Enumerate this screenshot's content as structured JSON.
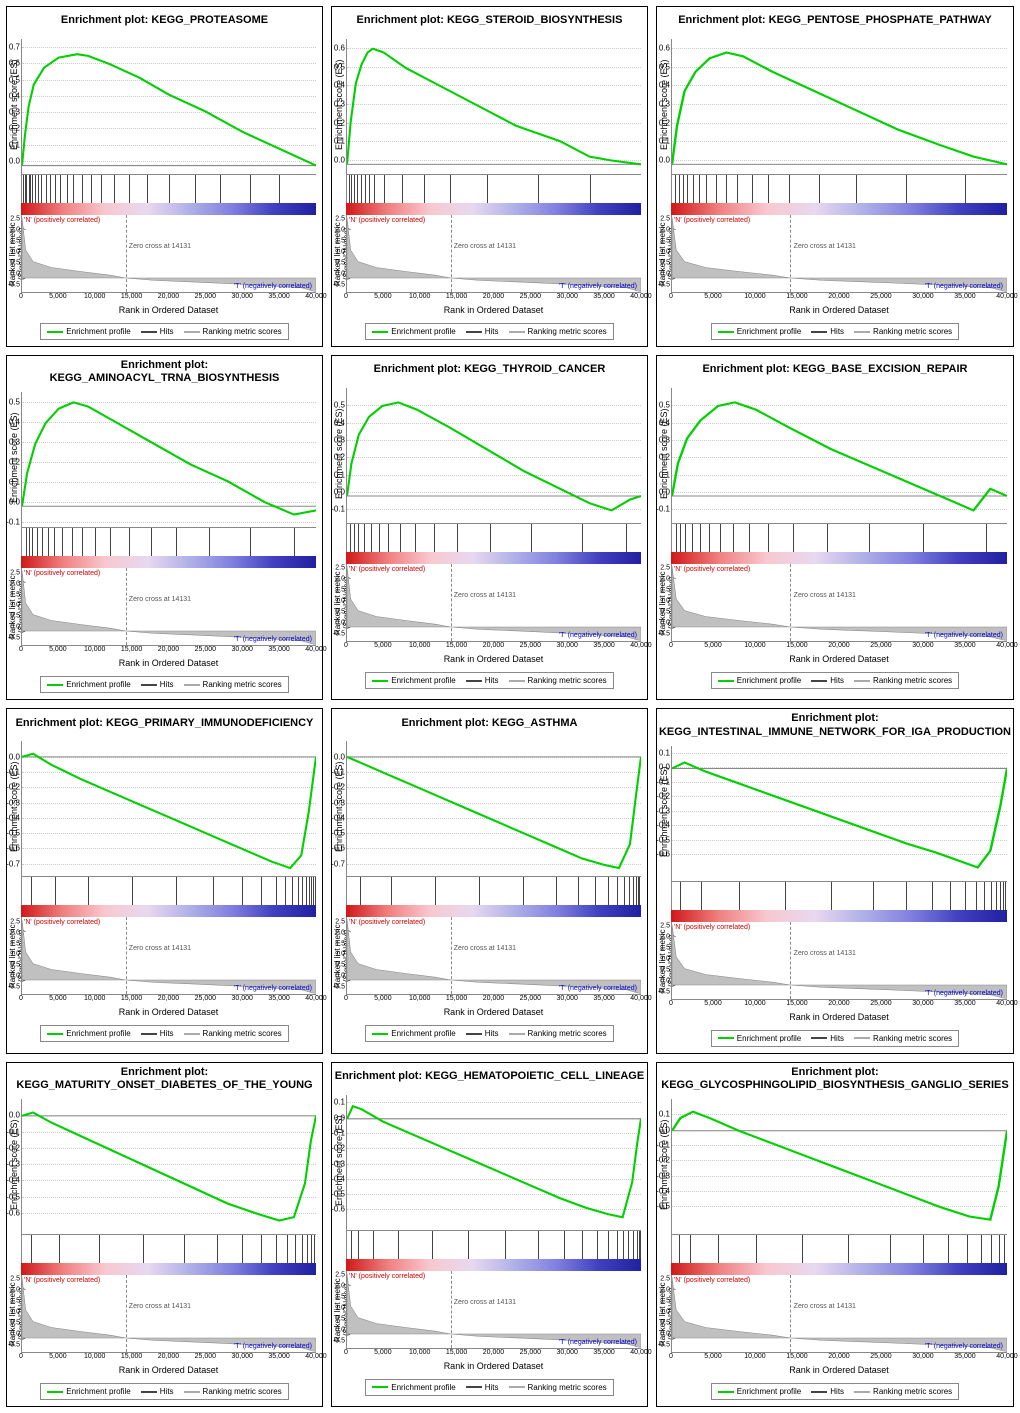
{
  "global": {
    "x_max": 40000,
    "x_ticks": [
      0,
      5000,
      10000,
      15000,
      20000,
      25000,
      30000,
      35000,
      40000
    ],
    "x_tick_labels": [
      "0",
      "5,000",
      "10,000",
      "15,000",
      "20,000",
      "25,000",
      "30,000",
      "35,000",
      "40,000"
    ],
    "x_label": "Rank in Ordered Dataset",
    "es_ylabel": "Enrichment score (ES)",
    "metric_ylabel": "Ranked list metric (Signal2Noise)",
    "zero_cross_label": "Zero cross at 14131",
    "zero_cross_x": 14131,
    "pos_corr_label": "'N' (positively correlated)",
    "neg_corr_label": "'T' (negatively correlated)",
    "legend_enrichment": "Enrichment profile",
    "legend_hits": "Hits",
    "legend_metric": "Ranking metric scores",
    "line_color": "#00d000",
    "hit_color": "#444444",
    "metric_fill": "#c0c0c0",
    "gradient_colors": [
      "#d01818",
      "#f08080",
      "#f8c8d0",
      "#e8d8f0",
      "#b0b0e8",
      "#8080e0",
      "#4040c0",
      "#2020a0"
    ],
    "metric_yticks": [
      -0.5,
      0.0,
      0.5,
      1.0,
      1.5,
      2.0,
      2.5
    ],
    "metric_ymin": -0.6,
    "metric_ymax": 2.7,
    "metric_curve": [
      [
        0,
        2.6
      ],
      [
        500,
        1.2
      ],
      [
        1500,
        0.7
      ],
      [
        4000,
        0.45
      ],
      [
        8000,
        0.28
      ],
      [
        12000,
        0.12
      ],
      [
        14131,
        0.0
      ],
      [
        18000,
        -0.1
      ],
      [
        24000,
        -0.18
      ],
      [
        32000,
        -0.3
      ],
      [
        38000,
        -0.42
      ],
      [
        39500,
        -0.55
      ],
      [
        40000,
        -0.58
      ]
    ]
  },
  "panels": [
    {
      "title": "Enrichment plot: KEGG_PROTEASOME",
      "es_ymin": -0.05,
      "es_ymax": 0.75,
      "es_yticks": [
        0.0,
        0.1,
        0.2,
        0.3,
        0.4,
        0.5,
        0.6,
        0.7
      ],
      "es_curve": [
        [
          0,
          0.0
        ],
        [
          400,
          0.18
        ],
        [
          900,
          0.35
        ],
        [
          1600,
          0.48
        ],
        [
          3000,
          0.58
        ],
        [
          5000,
          0.64
        ],
        [
          7500,
          0.66
        ],
        [
          9000,
          0.65
        ],
        [
          12000,
          0.6
        ],
        [
          16000,
          0.52
        ],
        [
          20000,
          0.42
        ],
        [
          25000,
          0.32
        ],
        [
          30000,
          0.2
        ],
        [
          35000,
          0.1
        ],
        [
          40000,
          0.0
        ]
      ],
      "hits": [
        200,
        400,
        600,
        900,
        1100,
        1400,
        1800,
        2200,
        2600,
        3200,
        3800,
        4500,
        5200,
        6100,
        7000,
        8200,
        9400,
        10800,
        12500,
        14500,
        17000,
        20000,
        23500,
        27000,
        31000,
        35000
      ]
    },
    {
      "title": "Enrichment plot: KEGG_STEROID_BIOSYNTHESIS",
      "es_ymin": -0.05,
      "es_ymax": 0.65,
      "es_yticks": [
        0.0,
        0.1,
        0.2,
        0.3,
        0.4,
        0.5,
        0.6
      ],
      "es_curve": [
        [
          0,
          0.0
        ],
        [
          500,
          0.22
        ],
        [
          1200,
          0.42
        ],
        [
          2000,
          0.52
        ],
        [
          2800,
          0.58
        ],
        [
          3500,
          0.6
        ],
        [
          5000,
          0.58
        ],
        [
          8000,
          0.5
        ],
        [
          12000,
          0.42
        ],
        [
          17000,
          0.32
        ],
        [
          23000,
          0.2
        ],
        [
          29000,
          0.12
        ],
        [
          33000,
          0.04
        ],
        [
          36000,
          0.02
        ],
        [
          40000,
          0.0
        ]
      ],
      "hits": [
        300,
        600,
        1000,
        1400,
        1900,
        2400,
        3000,
        3700,
        5000,
        7500,
        10500,
        14000,
        19000,
        26000,
        33000
      ]
    },
    {
      "title": "Enrichment plot: KEGG_PENTOSE_PHOSPHATE_PATHWAY",
      "es_ymin": -0.05,
      "es_ymax": 0.65,
      "es_yticks": [
        0.0,
        0.1,
        0.2,
        0.3,
        0.4,
        0.5,
        0.6
      ],
      "es_curve": [
        [
          0,
          0.0
        ],
        [
          600,
          0.2
        ],
        [
          1500,
          0.38
        ],
        [
          2800,
          0.48
        ],
        [
          4500,
          0.55
        ],
        [
          6500,
          0.58
        ],
        [
          8500,
          0.56
        ],
        [
          12000,
          0.48
        ],
        [
          17000,
          0.38
        ],
        [
          22000,
          0.28
        ],
        [
          27000,
          0.18
        ],
        [
          32000,
          0.1
        ],
        [
          36000,
          0.04
        ],
        [
          40000,
          0.0
        ]
      ],
      "hits": [
        400,
        800,
        1300,
        1800,
        2500,
        3200,
        4100,
        5200,
        6400,
        7800,
        9500,
        11500,
        14000,
        17500,
        22000,
        28000,
        35000
      ]
    },
    {
      "title": "Enrichment plot: KEGG_AMINOACYL_TRNA_BIOSYNTHESIS",
      "es_ymin": -0.1,
      "es_ymax": 0.55,
      "es_yticks": [
        -0.1,
        0.0,
        0.1,
        0.2,
        0.3,
        0.4,
        0.5
      ],
      "es_curve": [
        [
          0,
          0.0
        ],
        [
          700,
          0.16
        ],
        [
          1800,
          0.3
        ],
        [
          3200,
          0.4
        ],
        [
          5000,
          0.47
        ],
        [
          7000,
          0.5
        ],
        [
          9000,
          0.48
        ],
        [
          13000,
          0.4
        ],
        [
          18000,
          0.3
        ],
        [
          23000,
          0.2
        ],
        [
          28000,
          0.12
        ],
        [
          33000,
          0.02
        ],
        [
          37000,
          -0.04
        ],
        [
          40000,
          -0.02
        ]
      ],
      "hits": [
        500,
        900,
        1400,
        2000,
        2700,
        3500,
        4400,
        5500,
        6800,
        8200,
        9900,
        12000,
        14500,
        17500,
        21000,
        25500,
        31000,
        37000
      ]
    },
    {
      "title": "Enrichment plot: KEGG_THYROID_CANCER",
      "es_ymin": -0.15,
      "es_ymax": 0.6,
      "es_yticks": [
        -0.1,
        0.0,
        0.1,
        0.2,
        0.3,
        0.4,
        0.5
      ],
      "es_curve": [
        [
          0,
          0.0
        ],
        [
          600,
          0.18
        ],
        [
          1600,
          0.34
        ],
        [
          3000,
          0.44
        ],
        [
          4800,
          0.5
        ],
        [
          7000,
          0.52
        ],
        [
          9500,
          0.48
        ],
        [
          14000,
          0.38
        ],
        [
          19000,
          0.26
        ],
        [
          24000,
          0.14
        ],
        [
          29000,
          0.04
        ],
        [
          33000,
          -0.04
        ],
        [
          36000,
          -0.08
        ],
        [
          38500,
          -0.02
        ],
        [
          40000,
          0.0
        ]
      ],
      "hits": [
        400,
        900,
        1500,
        2300,
        3200,
        4300,
        5600,
        7200,
        9200,
        11800,
        15000,
        19500,
        25000,
        32000,
        38000
      ]
    },
    {
      "title": "Enrichment plot: KEGG_BASE_EXCISION_REPAIR",
      "es_ymin": -0.15,
      "es_ymax": 0.6,
      "es_yticks": [
        -0.1,
        0.0,
        0.1,
        0.2,
        0.3,
        0.4,
        0.5
      ],
      "es_curve": [
        [
          0,
          0.0
        ],
        [
          700,
          0.18
        ],
        [
          1800,
          0.32
        ],
        [
          3400,
          0.42
        ],
        [
          5500,
          0.5
        ],
        [
          7500,
          0.52
        ],
        [
          10000,
          0.48
        ],
        [
          14000,
          0.38
        ],
        [
          19000,
          0.26
        ],
        [
          24000,
          0.16
        ],
        [
          29000,
          0.06
        ],
        [
          33000,
          -0.02
        ],
        [
          36000,
          -0.08
        ],
        [
          38000,
          0.04
        ],
        [
          40000,
          0.0
        ]
      ],
      "hits": [
        500,
        1000,
        1600,
        2400,
        3300,
        4400,
        5700,
        7300,
        9200,
        11500,
        14500,
        18500,
        23500,
        30000,
        37500
      ]
    },
    {
      "title": "Enrichment plot: KEGG_PRIMARY_IMMUNODEFICIENCY",
      "es_ymin": -0.75,
      "es_ymax": 0.1,
      "es_yticks": [
        -0.7,
        -0.6,
        -0.5,
        -0.4,
        -0.3,
        -0.2,
        -0.1,
        0.0
      ],
      "es_curve": [
        [
          0,
          0.0
        ],
        [
          1500,
          0.02
        ],
        [
          4000,
          -0.05
        ],
        [
          8000,
          -0.14
        ],
        [
          12000,
          -0.22
        ],
        [
          16000,
          -0.3
        ],
        [
          20000,
          -0.38
        ],
        [
          24000,
          -0.46
        ],
        [
          28000,
          -0.54
        ],
        [
          31000,
          -0.6
        ],
        [
          34000,
          -0.66
        ],
        [
          36500,
          -0.7
        ],
        [
          38000,
          -0.62
        ],
        [
          39000,
          -0.35
        ],
        [
          40000,
          0.0
        ]
      ],
      "hits": [
        1200,
        4500,
        9000,
        15000,
        21000,
        26000,
        30000,
        32500,
        34500,
        35800,
        36800,
        37500,
        38100,
        38600,
        39000,
        39300,
        39600,
        39800
      ]
    },
    {
      "title": "Enrichment plot: KEGG_ASTHMA",
      "es_ymin": -0.75,
      "es_ymax": 0.1,
      "es_yticks": [
        -0.7,
        -0.6,
        -0.5,
        -0.4,
        -0.3,
        -0.2,
        -0.1,
        0.0
      ],
      "es_curve": [
        [
          0,
          0.0
        ],
        [
          2000,
          -0.04
        ],
        [
          5000,
          -0.1
        ],
        [
          9000,
          -0.18
        ],
        [
          13000,
          -0.26
        ],
        [
          17000,
          -0.34
        ],
        [
          21000,
          -0.42
        ],
        [
          25000,
          -0.5
        ],
        [
          29000,
          -0.58
        ],
        [
          32000,
          -0.64
        ],
        [
          35000,
          -0.68
        ],
        [
          37000,
          -0.7
        ],
        [
          38500,
          -0.55
        ],
        [
          39300,
          -0.25
        ],
        [
          40000,
          0.0
        ]
      ],
      "hits": [
        1800,
        6000,
        12000,
        18000,
        24000,
        28500,
        31500,
        33800,
        35500,
        36800,
        37700,
        38400,
        38900,
        39300,
        39600,
        39800
      ]
    },
    {
      "title": "Enrichment plot: KEGG_INTESTINAL_IMMUNE_NETWORK_FOR_IGA_PRODUCTION",
      "es_ymin": -0.75,
      "es_ymax": 0.15,
      "es_yticks": [
        -0.6,
        -0.5,
        -0.4,
        -0.3,
        -0.2,
        -0.1,
        0.0,
        0.1
      ],
      "es_curve": [
        [
          0,
          0.0
        ],
        [
          1500,
          0.04
        ],
        [
          4000,
          -0.02
        ],
        [
          8000,
          -0.1
        ],
        [
          12000,
          -0.18
        ],
        [
          16000,
          -0.26
        ],
        [
          20000,
          -0.34
        ],
        [
          24000,
          -0.42
        ],
        [
          28000,
          -0.5
        ],
        [
          31500,
          -0.56
        ],
        [
          34500,
          -0.62
        ],
        [
          36500,
          -0.66
        ],
        [
          38000,
          -0.55
        ],
        [
          39200,
          -0.25
        ],
        [
          40000,
          0.0
        ]
      ],
      "hits": [
        1000,
        3500,
        8000,
        13500,
        19000,
        24000,
        28000,
        31000,
        33200,
        35000,
        36300,
        37300,
        38100,
        38700,
        39200,
        39500,
        39800
      ]
    },
    {
      "title": "Enrichment plot: KEGG_MATURITY_ONSET_DIABETES_OF_THE_YOUNG",
      "es_ymin": -0.7,
      "es_ymax": 0.1,
      "es_yticks": [
        -0.6,
        -0.5,
        -0.4,
        -0.3,
        -0.2,
        -0.1,
        0.0
      ],
      "es_curve": [
        [
          0,
          0.0
        ],
        [
          1500,
          0.02
        ],
        [
          4000,
          -0.04
        ],
        [
          8000,
          -0.12
        ],
        [
          12000,
          -0.2
        ],
        [
          16000,
          -0.28
        ],
        [
          20000,
          -0.36
        ],
        [
          24000,
          -0.44
        ],
        [
          28000,
          -0.52
        ],
        [
          32000,
          -0.58
        ],
        [
          35000,
          -0.62
        ],
        [
          37000,
          -0.6
        ],
        [
          38500,
          -0.4
        ],
        [
          39300,
          -0.15
        ],
        [
          40000,
          0.0
        ]
      ],
      "hits": [
        1200,
        5000,
        10500,
        16500,
        22000,
        26500,
        30000,
        32500,
        34500,
        36000,
        37200,
        38100,
        38800,
        39300,
        39700
      ]
    },
    {
      "title": "Enrichment plot: KEGG_HEMATOPOIETIC_CELL_LINEAGE",
      "es_ymin": -0.7,
      "es_ymax": 0.15,
      "es_yticks": [
        -0.6,
        -0.5,
        -0.4,
        -0.3,
        -0.2,
        -0.1,
        0.0,
        0.1
      ],
      "es_curve": [
        [
          0,
          0.0
        ],
        [
          800,
          0.08
        ],
        [
          2000,
          0.06
        ],
        [
          5000,
          -0.02
        ],
        [
          9000,
          -0.1
        ],
        [
          13000,
          -0.18
        ],
        [
          17000,
          -0.26
        ],
        [
          21000,
          -0.34
        ],
        [
          25000,
          -0.42
        ],
        [
          29000,
          -0.5
        ],
        [
          32500,
          -0.56
        ],
        [
          35500,
          -0.6
        ],
        [
          37500,
          -0.62
        ],
        [
          38800,
          -0.4
        ],
        [
          39500,
          -0.15
        ],
        [
          40000,
          0.0
        ]
      ],
      "hits": [
        600,
        1500,
        3500,
        7000,
        11500,
        16500,
        21500,
        26000,
        29500,
        32000,
        34000,
        35500,
        36700,
        37600,
        38300,
        38900,
        39400,
        39700,
        39900
      ]
    },
    {
      "title": "Enrichment plot: KEGG_GLYCOSPHINGOLIPID_BIOSYNTHESIS_GANGLIO_SERIES",
      "es_ymin": -0.65,
      "es_ymax": 0.2,
      "es_yticks": [
        -0.5,
        -0.4,
        -0.3,
        -0.2,
        -0.1,
        0.0,
        0.1
      ],
      "es_curve": [
        [
          0,
          0.0
        ],
        [
          1000,
          0.08
        ],
        [
          2500,
          0.12
        ],
        [
          4500,
          0.08
        ],
        [
          8000,
          0.0
        ],
        [
          12000,
          -0.08
        ],
        [
          16000,
          -0.16
        ],
        [
          20000,
          -0.24
        ],
        [
          24000,
          -0.32
        ],
        [
          28000,
          -0.4
        ],
        [
          32000,
          -0.48
        ],
        [
          35500,
          -0.54
        ],
        [
          38000,
          -0.56
        ],
        [
          39000,
          -0.35
        ],
        [
          40000,
          0.0
        ]
      ],
      "hits": [
        800,
        2200,
        5500,
        10000,
        15500,
        21000,
        26000,
        30000,
        33000,
        35200,
        36900,
        38100,
        39000,
        39600
      ]
    }
  ]
}
